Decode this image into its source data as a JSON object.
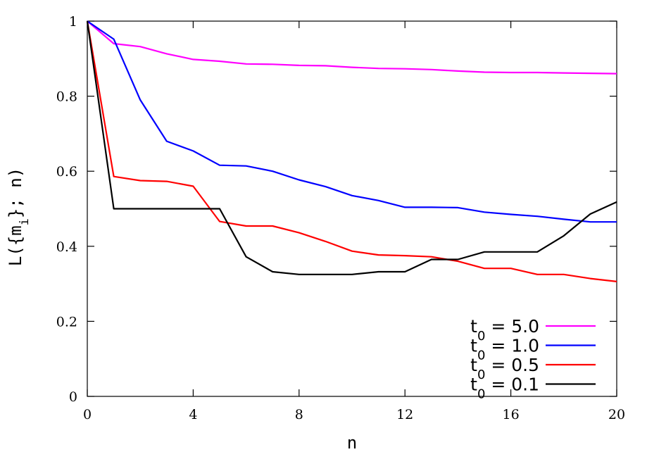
{
  "chart_data": {
    "type": "line",
    "title": "",
    "xlabel": "n",
    "ylabel": "L({m_i}; n)",
    "ylabel_main": "L({m",
    "ylabel_sub": "i",
    "ylabel_tail": "}; n)",
    "xlim": [
      0,
      20
    ],
    "ylim": [
      0,
      1
    ],
    "xticks": [
      "0",
      "4",
      "8",
      "12",
      "16",
      "20"
    ],
    "yticks": [
      "0",
      "0.2",
      "0.4",
      "0.6",
      "0.8",
      "1"
    ],
    "grid": false,
    "legend": {
      "position": "bottom-right"
    },
    "x": [
      0,
      1,
      2,
      3,
      4,
      5,
      6,
      7,
      8,
      9,
      10,
      11,
      12,
      13,
      14,
      15,
      16,
      17,
      18,
      19,
      20
    ],
    "series": [
      {
        "name": "t0 = 5.0",
        "name_base": "t",
        "name_sub": "0",
        "name_rest": " = 5.0",
        "color": "#ff00ff",
        "values": [
          1.0,
          0.94,
          0.932,
          0.913,
          0.898,
          0.893,
          0.886,
          0.885,
          0.882,
          0.881,
          0.877,
          0.874,
          0.873,
          0.871,
          0.867,
          0.864,
          0.863,
          0.863,
          0.862,
          0.861,
          0.86
        ]
      },
      {
        "name": "t0 = 1.0",
        "name_base": "t",
        "name_sub": "0",
        "name_rest": " = 1.0",
        "color": "#0000ff",
        "values": [
          1.0,
          0.952,
          0.79,
          0.68,
          0.654,
          0.616,
          0.614,
          0.6,
          0.577,
          0.559,
          0.535,
          0.522,
          0.504,
          0.504,
          0.503,
          0.491,
          0.485,
          0.48,
          0.472,
          0.465,
          0.465
        ]
      },
      {
        "name": "t0 = 0.5",
        "name_base": "t",
        "name_sub": "0",
        "name_rest": " = 0.5",
        "color": "#ff0000",
        "values": [
          1.0,
          0.586,
          0.575,
          0.573,
          0.56,
          0.466,
          0.454,
          0.454,
          0.436,
          0.413,
          0.387,
          0.377,
          0.375,
          0.372,
          0.36,
          0.341,
          0.341,
          0.325,
          0.325,
          0.314,
          0.306
        ]
      },
      {
        "name": "t0 = 0.1",
        "name_base": "t",
        "name_sub": "0",
        "name_rest": " = 0.1",
        "color": "#000000",
        "values": [
          1.0,
          0.5,
          0.5,
          0.5,
          0.5,
          0.5,
          0.372,
          0.332,
          0.325,
          0.325,
          0.325,
          0.332,
          0.332,
          0.365,
          0.365,
          0.385,
          0.385,
          0.385,
          0.428,
          0.486,
          0.518
        ]
      }
    ]
  }
}
